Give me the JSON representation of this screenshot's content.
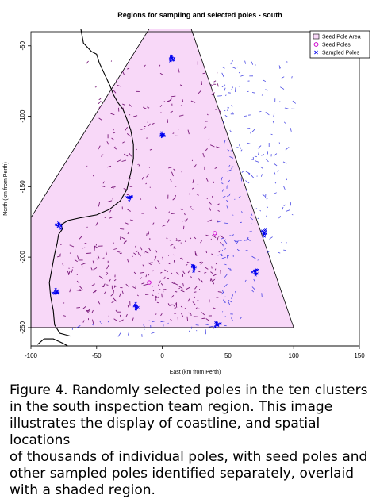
{
  "chart_data": {
    "type": "scatter",
    "title": "Regions for sampling and selected poles - south",
    "xlabel": "East (km from Perth)",
    "ylabel": "North (km from Perth)",
    "xlim": [
      -100,
      150
    ],
    "ylim": [
      -263,
      -40
    ],
    "xticks": [
      -100,
      -50,
      0,
      50,
      100,
      150
    ],
    "yticks": [
      -50,
      -100,
      -150,
      -200,
      -250
    ],
    "grid": false,
    "legend_position": "top-right",
    "legend": [
      {
        "label": "Seed Pole Area",
        "marker": "filled-box",
        "color": "#f8d8f8"
      },
      {
        "label": "Seed Poles",
        "marker": "circle",
        "color": "#cc00cc"
      },
      {
        "label": "Sampled Poles",
        "marker": "x",
        "color": "#0000ee"
      }
    ],
    "seed_pole_area": {
      "name": "Seed Pole Area",
      "polygon": [
        [
          -100,
          -172
        ],
        [
          -10,
          -38
        ],
        [
          22,
          -38
        ],
        [
          100,
          -250
        ],
        [
          -100,
          -250
        ]
      ]
    },
    "seed_poles": {
      "name": "Seed Poles",
      "points": [
        [
          40,
          -183
        ],
        [
          -10,
          -218
        ]
      ]
    },
    "sampled_pole_clusters": {
      "name": "Sampled Poles",
      "centers": [
        [
          -79,
          -178
        ],
        [
          -81,
          -225
        ],
        [
          -25,
          -158
        ],
        [
          0,
          -113
        ],
        [
          7,
          -59
        ],
        [
          24,
          -208
        ],
        [
          71,
          -211
        ],
        [
          78,
          -183
        ],
        [
          42,
          -248
        ],
        [
          -20,
          -235
        ]
      ]
    }
  },
  "caption": {
    "line1": "Figure 4.  Randomly selected poles in the ten clusters",
    "line2": "in the south inspection team region.  This image",
    "line3": "illustrates the display of coastline, and spatial locations",
    "line4": "of thousands of individual poles, with seed poles and",
    "line5": "other sampled poles identified separately, overlaid",
    "line6": "with a shaded region."
  }
}
